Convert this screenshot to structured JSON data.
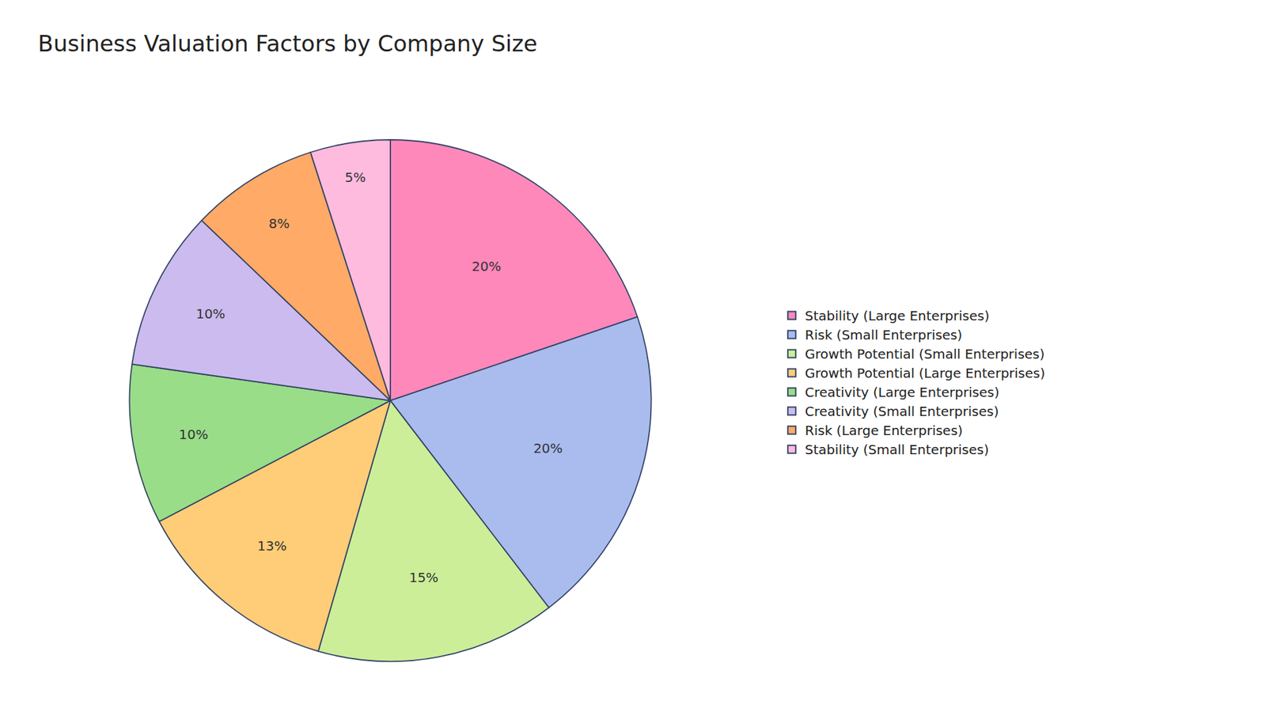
{
  "chart_data": {
    "type": "pie",
    "title": "Business Valuation Factors by Company Size",
    "categories": [
      "Stability (Large Enterprises)",
      "Risk (Small Enterprises)",
      "Growth Potential (Small Enterprises)",
      "Growth Potential (Large Enterprises)",
      "Creativity (Large Enterprises)",
      "Creativity (Small Enterprises)",
      "Risk (Large Enterprises)",
      "Stability (Small Enterprises)"
    ],
    "values": [
      20,
      20,
      15,
      13,
      10,
      10,
      8,
      5
    ],
    "value_labels": [
      "20%",
      "20%",
      "15%",
      "13%",
      "10%",
      "10%",
      "8%",
      "5%"
    ],
    "colors": [
      "#FF88BB",
      "#AABBEE",
      "#CCEE99",
      "#FFCC77",
      "#99DD88",
      "#CCBBEE",
      "#FFAA66",
      "#FFBBDD"
    ],
    "data_labels": true,
    "legend": "right"
  }
}
